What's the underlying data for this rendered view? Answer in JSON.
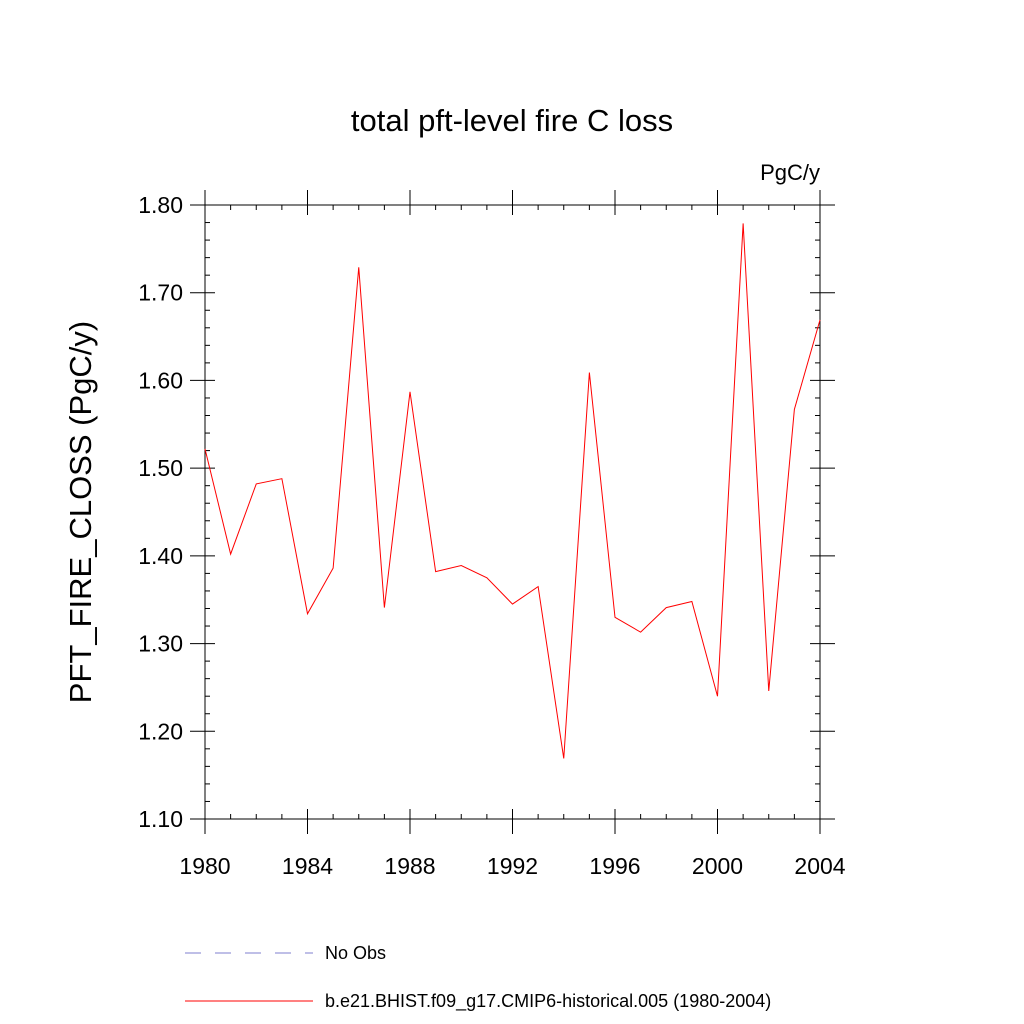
{
  "chart_data": {
    "type": "line",
    "title": "total pft-level fire C loss",
    "units_label": "PgC/y",
    "ylabel": "PFT_FIRE_CLOSS  (PgC/y)",
    "xlabel": "",
    "xlim": [
      1980,
      2004
    ],
    "ylim": [
      1.1,
      1.8
    ],
    "x_ticks": [
      1980,
      1984,
      1988,
      1992,
      1996,
      2000,
      2004
    ],
    "x_tick_labels": [
      "1980",
      "1984",
      "1988",
      "1992",
      "1996",
      "2000",
      "2004"
    ],
    "y_ticks": [
      1.1,
      1.2,
      1.3,
      1.4,
      1.5,
      1.6,
      1.7,
      1.8
    ],
    "y_tick_labels": [
      "1.10",
      "1.20",
      "1.30",
      "1.40",
      "1.50",
      "1.60",
      "1.70",
      "1.80"
    ],
    "grid": false,
    "legend_position": "bottom",
    "series": [
      {
        "name": "b.e21.BHIST.f09_g17.CMIP6-historical.005 (1980-2004)",
        "color": "#ff0000",
        "style": "solid",
        "x": [
          1980,
          1981,
          1982,
          1983,
          1984,
          1985,
          1986,
          1987,
          1988,
          1989,
          1990,
          1991,
          1992,
          1993,
          1994,
          1995,
          1996,
          1997,
          1998,
          1999,
          2000,
          2001,
          2002,
          2003,
          2004
        ],
        "values": [
          1.522,
          1.402,
          1.482,
          1.488,
          1.334,
          1.386,
          1.729,
          1.341,
          1.587,
          1.382,
          1.389,
          1.375,
          1.345,
          1.365,
          1.169,
          1.609,
          1.33,
          1.313,
          1.341,
          1.348,
          1.24,
          1.779,
          1.246,
          1.567,
          1.669
        ]
      }
    ],
    "legend": [
      {
        "label": "No Obs",
        "color": "#7f7fcf",
        "style": "dashed"
      },
      {
        "label": "b.e21.BHIST.f09_g17.CMIP6-historical.005 (1980-2004)",
        "color": "#ff0000",
        "style": "solid"
      }
    ]
  }
}
